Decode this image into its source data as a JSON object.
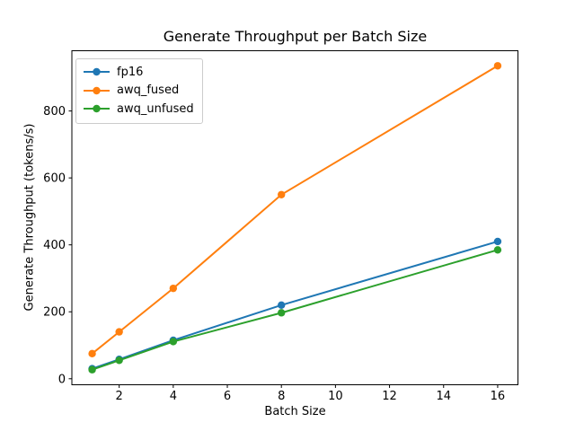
{
  "window": {
    "background": "#ffffff"
  },
  "chart_data": {
    "type": "line",
    "title": "Generate Throughput per Batch Size",
    "xlabel": "Batch Size",
    "ylabel": "Generate Throughput (tokens/s)",
    "x": [
      1,
      2,
      4,
      8,
      16
    ],
    "series": [
      {
        "name": "fp16",
        "color": "#1f77b4",
        "values": [
          30,
          58,
          115,
          220,
          410
        ]
      },
      {
        "name": "awq_fused",
        "color": "#ff7f0e",
        "values": [
          75,
          140,
          270,
          550,
          935
        ]
      },
      {
        "name": "awq_unfused",
        "color": "#2ca02c",
        "values": [
          27,
          55,
          111,
          197,
          385
        ]
      }
    ],
    "xticks": [
      2,
      4,
      6,
      8,
      10,
      12,
      14,
      16
    ],
    "yticks": [
      0,
      200,
      400,
      600,
      800
    ],
    "xlim": [
      0.25,
      16.75
    ],
    "ylim": [
      -18,
      980
    ],
    "grid": false,
    "marker": "o",
    "legend_position": "upper left",
    "axis_color": "#000000",
    "legend_border_color": "#cccccc"
  }
}
